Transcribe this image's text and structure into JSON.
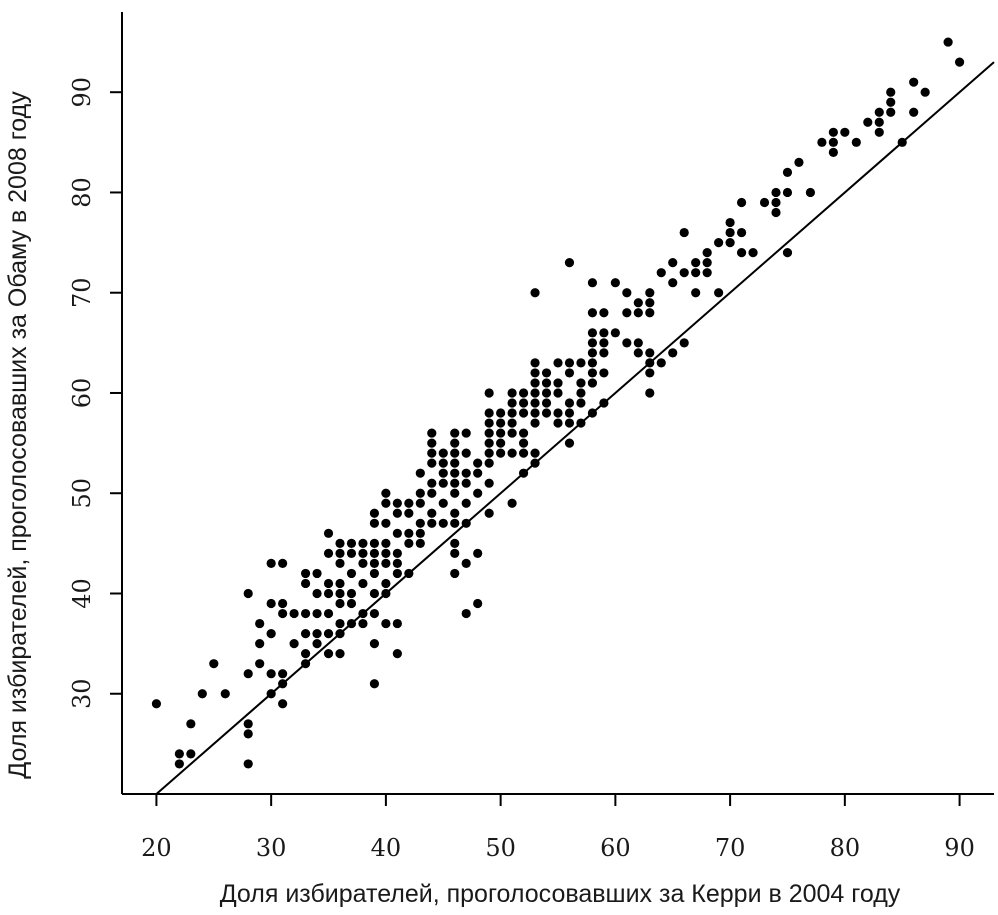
{
  "chart_data": {
    "type": "scatter",
    "xlabel": "Доля избирателей, проголосовавших за Керри в 2004 году",
    "ylabel": "Доля избирателей, проголосовавших за Обаму в 2008 году",
    "xlim": [
      17,
      93
    ],
    "ylim": [
      20,
      98
    ],
    "xticks": [
      20,
      30,
      40,
      50,
      60,
      70,
      80,
      90
    ],
    "yticks": [
      30,
      40,
      50,
      60,
      70,
      80,
      90
    ],
    "grid": false,
    "reference_line": {
      "x1": 20,
      "y1": 20,
      "x2": 93,
      "y2": 93
    },
    "point_color": "#000000",
    "points": [
      [
        20,
        29
      ],
      [
        22,
        24
      ],
      [
        22,
        23
      ],
      [
        23,
        27
      ],
      [
        23,
        24
      ],
      [
        24,
        30
      ],
      [
        25,
        33
      ],
      [
        26,
        30
      ],
      [
        28,
        40
      ],
      [
        28,
        32
      ],
      [
        28,
        27
      ],
      [
        28,
        26
      ],
      [
        28,
        23
      ],
      [
        29,
        37
      ],
      [
        29,
        35
      ],
      [
        29,
        33
      ],
      [
        30,
        43
      ],
      [
        30,
        39
      ],
      [
        30,
        36
      ],
      [
        30,
        32
      ],
      [
        30,
        30
      ],
      [
        31,
        43
      ],
      [
        31,
        39
      ],
      [
        31,
        38
      ],
      [
        31,
        32
      ],
      [
        31,
        31
      ],
      [
        31,
        29
      ],
      [
        32,
        38
      ],
      [
        32,
        35
      ],
      [
        33,
        42
      ],
      [
        33,
        41
      ],
      [
        33,
        38
      ],
      [
        33,
        36
      ],
      [
        33,
        34
      ],
      [
        33,
        33
      ],
      [
        34,
        42
      ],
      [
        34,
        40
      ],
      [
        34,
        38
      ],
      [
        34,
        36
      ],
      [
        34,
        35
      ],
      [
        35,
        46
      ],
      [
        35,
        44
      ],
      [
        35,
        41
      ],
      [
        35,
        40
      ],
      [
        35,
        38
      ],
      [
        35,
        36
      ],
      [
        35,
        34
      ],
      [
        36,
        45
      ],
      [
        36,
        44
      ],
      [
        36,
        43
      ],
      [
        36,
        41
      ],
      [
        36,
        40
      ],
      [
        36,
        39
      ],
      [
        36,
        37
      ],
      [
        36,
        36
      ],
      [
        36,
        34
      ],
      [
        37,
        45
      ],
      [
        37,
        44
      ],
      [
        37,
        42
      ],
      [
        37,
        40
      ],
      [
        37,
        39
      ],
      [
        37,
        37
      ],
      [
        38,
        45
      ],
      [
        38,
        44
      ],
      [
        38,
        43
      ],
      [
        38,
        41
      ],
      [
        38,
        38
      ],
      [
        38,
        37
      ],
      [
        39,
        48
      ],
      [
        39,
        47
      ],
      [
        39,
        45
      ],
      [
        39,
        44
      ],
      [
        39,
        43
      ],
      [
        39,
        42
      ],
      [
        39,
        40
      ],
      [
        39,
        38
      ],
      [
        39,
        35
      ],
      [
        39,
        31
      ],
      [
        40,
        50
      ],
      [
        40,
        49
      ],
      [
        40,
        47
      ],
      [
        40,
        45
      ],
      [
        40,
        44
      ],
      [
        40,
        43
      ],
      [
        40,
        41
      ],
      [
        40,
        40
      ],
      [
        40,
        37
      ],
      [
        41,
        49
      ],
      [
        41,
        48
      ],
      [
        41,
        46
      ],
      [
        41,
        44
      ],
      [
        41,
        43
      ],
      [
        41,
        42
      ],
      [
        41,
        37
      ],
      [
        41,
        34
      ],
      [
        42,
        49
      ],
      [
        42,
        48
      ],
      [
        42,
        46
      ],
      [
        42,
        45
      ],
      [
        42,
        42
      ],
      [
        43,
        52
      ],
      [
        43,
        50
      ],
      [
        43,
        49
      ],
      [
        43,
        47
      ],
      [
        43,
        46
      ],
      [
        43,
        45
      ],
      [
        44,
        56
      ],
      [
        44,
        55
      ],
      [
        44,
        54
      ],
      [
        44,
        53
      ],
      [
        44,
        51
      ],
      [
        44,
        50
      ],
      [
        44,
        48
      ],
      [
        44,
        47
      ],
      [
        45,
        54
      ],
      [
        45,
        53
      ],
      [
        45,
        52
      ],
      [
        45,
        51
      ],
      [
        45,
        49
      ],
      [
        45,
        47
      ],
      [
        46,
        56
      ],
      [
        46,
        55
      ],
      [
        46,
        54
      ],
      [
        46,
        53
      ],
      [
        46,
        52
      ],
      [
        46,
        51
      ],
      [
        46,
        50
      ],
      [
        46,
        48
      ],
      [
        46,
        47
      ],
      [
        46,
        45
      ],
      [
        46,
        44
      ],
      [
        46,
        42
      ],
      [
        47,
        56
      ],
      [
        47,
        54
      ],
      [
        47,
        52
      ],
      [
        47,
        51
      ],
      [
        47,
        49
      ],
      [
        47,
        47
      ],
      [
        47,
        43
      ],
      [
        47,
        38
      ],
      [
        48,
        53
      ],
      [
        48,
        52
      ],
      [
        48,
        50
      ],
      [
        48,
        44
      ],
      [
        48,
        39
      ],
      [
        49,
        60
      ],
      [
        49,
        58
      ],
      [
        49,
        57
      ],
      [
        49,
        56
      ],
      [
        49,
        55
      ],
      [
        49,
        54
      ],
      [
        49,
        53
      ],
      [
        49,
        51
      ],
      [
        49,
        48
      ],
      [
        50,
        58
      ],
      [
        50,
        57
      ],
      [
        50,
        56
      ],
      [
        50,
        55
      ],
      [
        50,
        54
      ],
      [
        51,
        60
      ],
      [
        51,
        59
      ],
      [
        51,
        58
      ],
      [
        51,
        57
      ],
      [
        51,
        56
      ],
      [
        51,
        54
      ],
      [
        51,
        49
      ],
      [
        52,
        60
      ],
      [
        52,
        59
      ],
      [
        52,
        58
      ],
      [
        52,
        56
      ],
      [
        52,
        55
      ],
      [
        52,
        54
      ],
      [
        52,
        52
      ],
      [
        53,
        70
      ],
      [
        53,
        63
      ],
      [
        53,
        62
      ],
      [
        53,
        61
      ],
      [
        53,
        60
      ],
      [
        53,
        59
      ],
      [
        53,
        58
      ],
      [
        53,
        57
      ],
      [
        53,
        54
      ],
      [
        53,
        53
      ],
      [
        54,
        62
      ],
      [
        54,
        61
      ],
      [
        54,
        60
      ],
      [
        54,
        59
      ],
      [
        54,
        58
      ],
      [
        55,
        63
      ],
      [
        55,
        61
      ],
      [
        55,
        60
      ],
      [
        55,
        58
      ],
      [
        55,
        57
      ],
      [
        56,
        73
      ],
      [
        56,
        63
      ],
      [
        56,
        62
      ],
      [
        56,
        59
      ],
      [
        56,
        58
      ],
      [
        56,
        57
      ],
      [
        56,
        55
      ],
      [
        57,
        63
      ],
      [
        57,
        61
      ],
      [
        57,
        60
      ],
      [
        57,
        59
      ],
      [
        57,
        57
      ],
      [
        58,
        71
      ],
      [
        58,
        68
      ],
      [
        58,
        66
      ],
      [
        58,
        65
      ],
      [
        58,
        64
      ],
      [
        58,
        63
      ],
      [
        58,
        62
      ],
      [
        58,
        61
      ],
      [
        58,
        58
      ],
      [
        59,
        68
      ],
      [
        59,
        66
      ],
      [
        59,
        65
      ],
      [
        59,
        64
      ],
      [
        59,
        62
      ],
      [
        59,
        59
      ],
      [
        60,
        71
      ],
      [
        60,
        66
      ],
      [
        61,
        70
      ],
      [
        61,
        68
      ],
      [
        61,
        65
      ],
      [
        62,
        69
      ],
      [
        62,
        68
      ],
      [
        62,
        65
      ],
      [
        62,
        64
      ],
      [
        63,
        70
      ],
      [
        63,
        69
      ],
      [
        63,
        68
      ],
      [
        63,
        64
      ],
      [
        63,
        63
      ],
      [
        63,
        62
      ],
      [
        63,
        60
      ],
      [
        64,
        72
      ],
      [
        64,
        63
      ],
      [
        65,
        73
      ],
      [
        65,
        71
      ],
      [
        65,
        64
      ],
      [
        66,
        76
      ],
      [
        66,
        72
      ],
      [
        66,
        65
      ],
      [
        67,
        73
      ],
      [
        67,
        72
      ],
      [
        67,
        70
      ],
      [
        68,
        74
      ],
      [
        68,
        73
      ],
      [
        68,
        72
      ],
      [
        69,
        75
      ],
      [
        69,
        70
      ],
      [
        70,
        77
      ],
      [
        70,
        76
      ],
      [
        70,
        75
      ],
      [
        71,
        79
      ],
      [
        71,
        76
      ],
      [
        71,
        74
      ],
      [
        72,
        74
      ],
      [
        73,
        79
      ],
      [
        74,
        80
      ],
      [
        74,
        79
      ],
      [
        74,
        78
      ],
      [
        75,
        82
      ],
      [
        75,
        80
      ],
      [
        75,
        74
      ],
      [
        76,
        83
      ],
      [
        77,
        80
      ],
      [
        78,
        85
      ],
      [
        79,
        86
      ],
      [
        79,
        85
      ],
      [
        79,
        84
      ],
      [
        80,
        86
      ],
      [
        81,
        85
      ],
      [
        82,
        87
      ],
      [
        83,
        88
      ],
      [
        83,
        87
      ],
      [
        83,
        86
      ],
      [
        84,
        90
      ],
      [
        84,
        89
      ],
      [
        84,
        88
      ],
      [
        85,
        85
      ],
      [
        86,
        91
      ],
      [
        86,
        88
      ],
      [
        87,
        90
      ],
      [
        89,
        95
      ],
      [
        90,
        93
      ]
    ]
  }
}
